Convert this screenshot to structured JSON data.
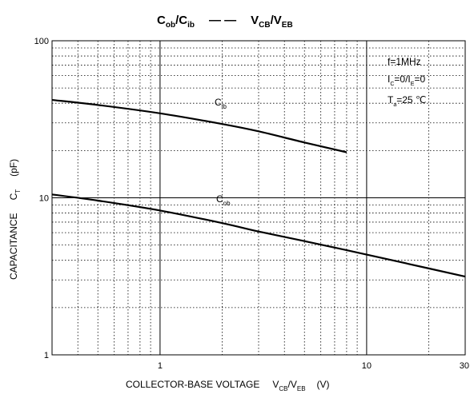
{
  "chart_data": {
    "type": "line",
    "x_scale": "log",
    "y_scale": "log",
    "xlim": [
      0.3,
      30
    ],
    "ylim": [
      1,
      100
    ],
    "x_ticks": [
      {
        "value": 1,
        "label": "1"
      },
      {
        "value": 10,
        "label": "10"
      },
      {
        "value": 30,
        "label": "30"
      }
    ],
    "y_ticks": [
      {
        "value": 1,
        "label": "1"
      },
      {
        "value": 10,
        "label": "10"
      },
      {
        "value": 100,
        "label": "100"
      }
    ],
    "grid": true,
    "title": {
      "main": "C",
      "sub_a": "ob",
      "slash": "/C",
      "sub_b": "ib",
      "dash": "— —",
      "v1": "V",
      "sub_c": "CB",
      "v2": "/V",
      "sub_d": "EB"
    },
    "xlabel": {
      "prefix": "COLLECTOR-BASE VOLTAGE",
      "v1": "V",
      "sub1": "CB",
      "v2": "/V",
      "sub2": "EB",
      "unit": "(V)"
    },
    "ylabel": {
      "prefix": "CAPACITANCE",
      "c": "C",
      "sub": "T",
      "unit": "(pF)"
    },
    "conditions": [
      {
        "text": "f=1MHz"
      },
      {
        "pre": "I",
        "sub1": "C",
        "mid": "=0/I",
        "sub2": "E",
        "post": "=0"
      },
      {
        "pre": "T",
        "sub1": "a",
        "mid": "=25 ℃"
      }
    ],
    "series": [
      {
        "name": "C",
        "name_sub": "ib",
        "x": [
          0.3,
          0.5,
          1,
          2,
          3,
          5,
          8
        ],
        "y": [
          42,
          39,
          34.5,
          29.5,
          26.5,
          22.5,
          19.5
        ]
      },
      {
        "name": "C",
        "name_sub": "ob",
        "x": [
          0.3,
          0.5,
          1,
          2,
          3,
          5,
          10,
          20,
          30
        ],
        "y": [
          10.5,
          9.6,
          8.3,
          6.9,
          6.1,
          5.3,
          4.35,
          3.55,
          3.15
        ]
      }
    ]
  }
}
